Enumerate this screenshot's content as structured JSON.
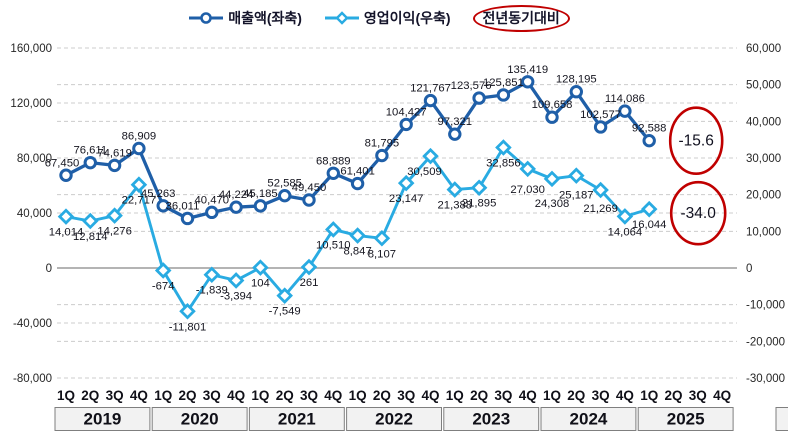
{
  "legend": {
    "series1_label": "매출액(좌축)",
    "series2_label": "영업이익(우축)",
    "yoy_badge": "전년동기대비"
  },
  "colors": {
    "series1": "#1f5fa8",
    "series2": "#29abe2",
    "annotation_red": "#c00000",
    "grid": "#cccccc",
    "zero_line": "#9b9b9b",
    "label_text": "#15151f",
    "axis_text": "#262626",
    "year_box_fill": "#f2f2f2",
    "year_box_border": "#7f7f7f"
  },
  "chart_data": {
    "type": "line",
    "quarter_labels": [
      "1Q",
      "2Q",
      "3Q",
      "4Q"
    ],
    "years": [
      "2019",
      "2020",
      "2021",
      "2022",
      "2023",
      "2024",
      "2025"
    ],
    "left_axis": {
      "tick_labels": [
        "160,000",
        "120,000",
        "80,000",
        "40,000",
        "0",
        "-40,000",
        "-80,000"
      ],
      "tick_values": [
        160000,
        120000,
        80000,
        40000,
        0,
        -40000,
        -80000
      ],
      "range": [
        -80000,
        160000
      ]
    },
    "right_axis": {
      "tick_labels": [
        "60,000",
        "50,000",
        "40,000",
        "30,000",
        "20,000",
        "10,000",
        "0",
        "-10,000",
        "-20,000",
        "-30,000"
      ],
      "tick_values": [
        60000,
        50000,
        40000,
        30000,
        20000,
        10000,
        0,
        -10000,
        -20000,
        -30000
      ],
      "range": [
        -30000,
        60000
      ]
    },
    "grid": "dashed",
    "legend_position": "top",
    "series": [
      {
        "name": "매출액(좌축)",
        "axis": "left",
        "marker": "circle",
        "color": "#1f5fa8",
        "label_position": "above",
        "values": [
          67450,
          76611,
          74619,
          86909,
          45263,
          36011,
          40470,
          44224,
          45185,
          52585,
          49450,
          68889,
          61401,
          81795,
          104427,
          121767,
          97321,
          123576,
          125851,
          135419,
          109658,
          128195,
          102577,
          114086,
          92588
        ],
        "labels": [
          "67,450",
          "76,611",
          "74,619",
          "86,909",
          "45,263",
          "36,011",
          "40,470",
          "44,224",
          "45,185",
          "52,585",
          "49,450",
          "68,889",
          "61,401",
          "81,795",
          "104,427",
          "121,767",
          "97,321",
          "123,576",
          "125,851",
          "135,419",
          "109,658",
          "128,195",
          "102,577",
          "114,086",
          "92,588"
        ]
      },
      {
        "name": "영업이익(우축)",
        "axis": "right",
        "marker": "diamond",
        "color": "#29abe2",
        "label_position": "below",
        "values": [
          14014,
          12814,
          14276,
          22717,
          -674,
          -11801,
          -1839,
          -3394,
          104,
          -7549,
          261,
          10510,
          8847,
          8107,
          23147,
          30509,
          21388,
          21895,
          32856,
          27030,
          24308,
          25187,
          21269,
          14064,
          16044
        ],
        "labels": [
          "14,014",
          "12,814",
          "14,276",
          "22,717",
          "-674",
          "-11,801",
          "-1,839",
          "-3,394",
          "104",
          "-7,549",
          "261",
          "10,510",
          "8,847",
          "8,107",
          "23,147",
          "30,509",
          "21,388",
          "21,895",
          "32,856",
          "27,030",
          "24,308",
          "25,187",
          "21,269",
          "14,064",
          "16,044"
        ]
      }
    ],
    "annotations": [
      {
        "text": "-15.6",
        "attached_series": "매출액(좌축)"
      },
      {
        "text": "-34.0",
        "attached_series": "영업이익(우축)"
      }
    ]
  }
}
